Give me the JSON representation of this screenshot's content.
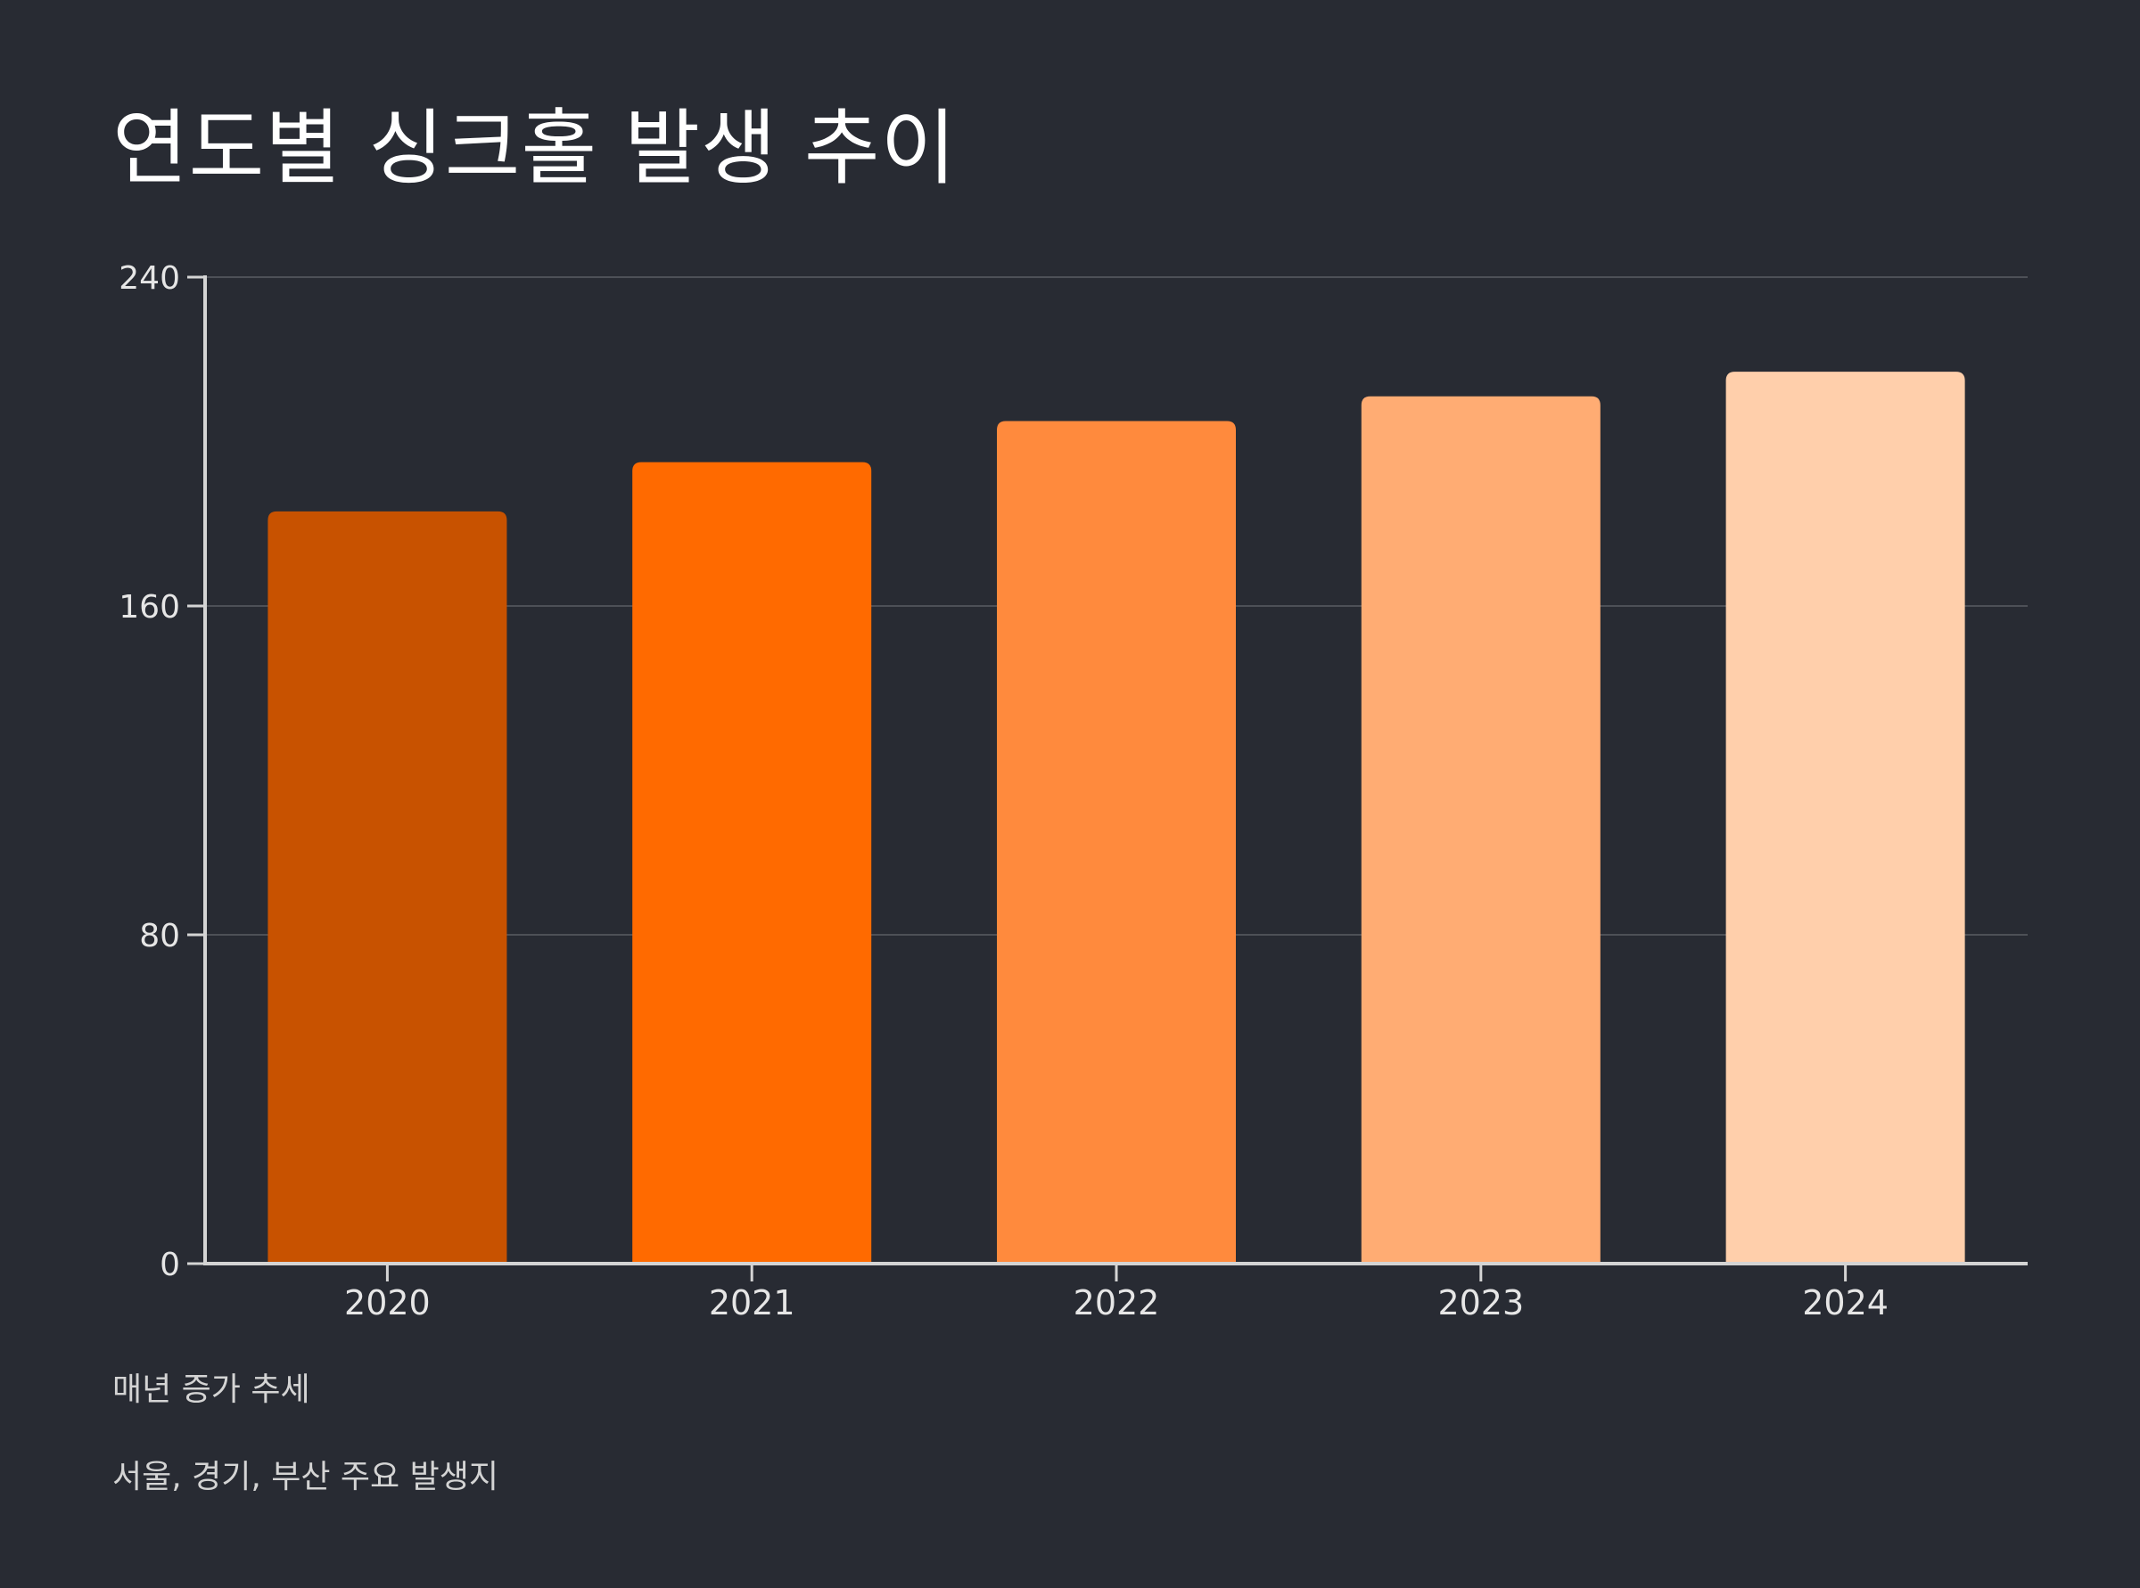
{
  "chart_data": {
    "type": "bar",
    "title": "연도별 싱크홀 발생 추이",
    "categories": [
      "2020",
      "2021",
      "2022",
      "2023",
      "2024"
    ],
    "values": [
      183,
      195,
      205,
      211,
      217
    ],
    "ylim": [
      0,
      240
    ],
    "yticks": [
      0,
      80,
      160,
      240
    ],
    "grid": true,
    "bar_colors": [
      "#c85200",
      "#ff6a00",
      "#ff8a3d",
      "#ffac73",
      "#ffcfab"
    ],
    "annotations": [
      "매년 증가 추세",
      "서울, 경기, 부산 주요 발생지"
    ]
  },
  "colors": {
    "background": "#282b33",
    "grid": "#4d5057",
    "axis": "#d4d4d4",
    "tick_label": "#e6e6e6",
    "title": "#ffffff"
  }
}
